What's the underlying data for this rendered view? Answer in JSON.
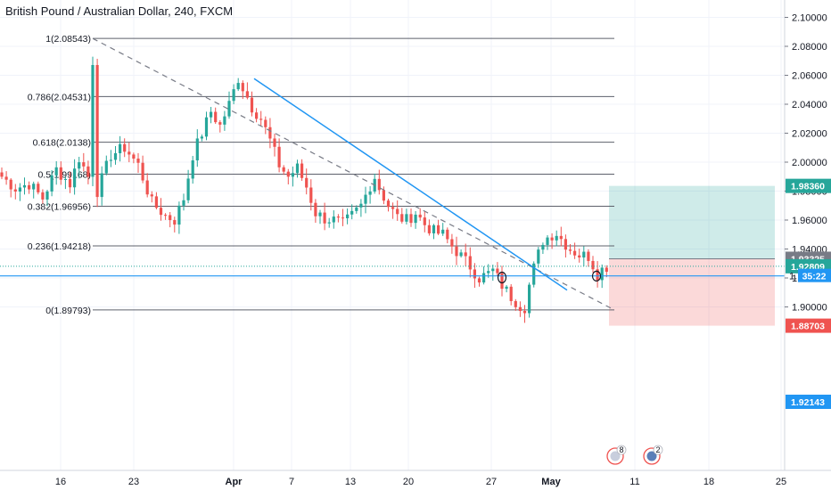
{
  "chart_data": {
    "type": "candlestick",
    "title": "British Pound / Australian Dollar, 240, FXCM",
    "ylim": [
      1.887,
      2.106
    ],
    "y_ticks": [
      "2.10000",
      "2.08000",
      "2.06000",
      "2.04000",
      "2.02000",
      "2.00000",
      "1.98000",
      "1.96000",
      "1.94000",
      "1.92000",
      "1.90000"
    ],
    "y_tick_values": [
      2.1,
      2.08,
      2.06,
      2.04,
      2.02,
      2.0,
      1.98,
      1.96,
      1.94,
      1.92,
      1.9
    ],
    "x_ticks": [
      "16",
      "23",
      "Apr",
      "7",
      "13",
      "20",
      "27",
      "May",
      "11",
      "18",
      "25"
    ],
    "x_tick_bold": [
      false,
      false,
      true,
      false,
      false,
      false,
      false,
      true,
      false,
      false,
      false
    ],
    "price_path": [
      [
        0,
        1.99
      ],
      [
        3,
        1.982
      ],
      [
        6,
        1.985
      ],
      [
        9,
        1.975
      ],
      [
        12,
        1.995
      ],
      [
        15,
        1.985
      ],
      [
        17,
        2.003
      ],
      [
        19,
        1.99
      ],
      [
        20,
        2.07
      ],
      [
        21,
        1.98
      ],
      [
        24,
        2.005
      ],
      [
        27,
        2.01
      ],
      [
        30,
        1.998
      ],
      [
        33,
        1.972
      ],
      [
        36,
        1.963
      ],
      [
        38,
        1.96
      ],
      [
        40,
        1.975
      ],
      [
        42,
        2.005
      ],
      [
        44,
        2.02
      ],
      [
        46,
        2.035
      ],
      [
        48,
        2.025
      ],
      [
        50,
        2.04
      ],
      [
        52,
        2.058
      ],
      [
        54,
        2.045
      ],
      [
        55,
        2.038
      ],
      [
        57,
        2.03
      ],
      [
        59,
        2.015
      ],
      [
        61,
        1.998
      ],
      [
        63,
        1.99
      ],
      [
        65,
        1.996
      ],
      [
        67,
        1.983
      ],
      [
        69,
        1.965
      ],
      [
        71,
        1.961
      ],
      [
        73,
        1.96
      ],
      [
        75,
        1.957
      ],
      [
        77,
        1.963
      ],
      [
        79,
        1.97
      ],
      [
        81,
        1.984
      ],
      [
        82,
        1.99
      ],
      [
        83,
        1.982
      ],
      [
        85,
        1.97
      ],
      [
        87,
        1.962
      ],
      [
        89,
        1.96
      ],
      [
        91,
        1.965
      ],
      [
        93,
        1.957
      ],
      [
        95,
        1.952
      ],
      [
        97,
        1.95
      ],
      [
        99,
        1.942
      ],
      [
        101,
        1.935
      ],
      [
        103,
        1.928
      ],
      [
        105,
        1.92
      ],
      [
        107,
        1.923
      ],
      [
        108,
        1.925
      ],
      [
        110,
        1.915
      ],
      [
        112,
        1.907
      ],
      [
        114,
        1.901
      ],
      [
        115,
        1.9
      ],
      [
        116,
        1.915
      ],
      [
        117,
        1.927
      ],
      [
        119,
        1.946
      ],
      [
        121,
        1.95
      ],
      [
        122,
        1.951
      ],
      [
        123,
        1.947
      ],
      [
        125,
        1.94
      ],
      [
        127,
        1.936
      ],
      [
        129,
        1.935
      ],
      [
        131,
        1.923
      ],
      [
        132,
        1.926
      ],
      [
        133,
        1.928
      ]
    ],
    "fib_levels": [
      {
        "label": "1(2.08543)",
        "value": 2.08543
      },
      {
        "label": "0.786(2.04531)",
        "value": 2.04531
      },
      {
        "label": "0.618(2.0138)",
        "value": 2.0138
      },
      {
        "label": "0.5(1.99168)",
        "value": 1.99168
      },
      {
        "label": "0.382(1.96956)",
        "value": 1.96956
      },
      {
        "label": "0.236(1.94218)",
        "value": 1.94218
      },
      {
        "label": "0(1.89793)",
        "value": 1.89793
      }
    ],
    "position": {
      "entry": 1.93325,
      "target": 1.9836,
      "stop": 1.88703
    },
    "horizontal_line": 1.92143,
    "current_price": 1.92809,
    "price_tags": [
      {
        "text": "1.98360",
        "value": 1.9836,
        "color": "#26a69a"
      },
      {
        "text": "1.93325",
        "value": 1.93325,
        "color": "#787b86"
      },
      {
        "text": "1.92809",
        "value": 1.92809,
        "color": "#26a69a"
      },
      {
        "text": "1.92143",
        "value": 1.92143,
        "color": "#2196f3"
      },
      {
        "text": "1.88703",
        "value": 1.88703,
        "color": "#ef5350"
      }
    ],
    "countdown": "35:22",
    "countdown_prefix": "1.",
    "event_badges": [
      {
        "count": "8"
      },
      {
        "count": "2"
      }
    ],
    "colors": {
      "up": "#26a69a",
      "down": "#ef5350",
      "trend": "#2196f3",
      "fib": "#131722",
      "dashed": "#787b86",
      "profit": "#26a69a",
      "loss": "#ef5350"
    }
  }
}
